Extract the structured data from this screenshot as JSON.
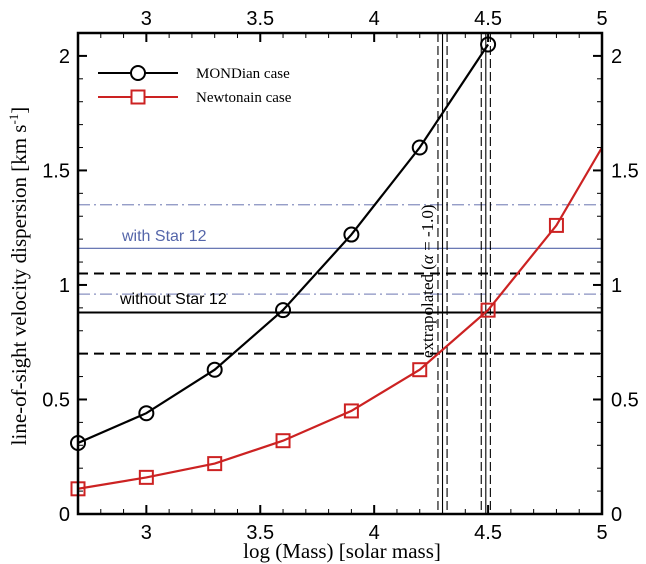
{
  "chart_data": {
    "type": "line",
    "xlabel": "log (Mass) [solar mass]",
    "ylabel_main": "line-of-sight velocity dispersion [km s",
    "ylabel_sup": "-1",
    "ylabel_close": "]",
    "xlim": [
      2.7,
      5.0
    ],
    "ylim": [
      0,
      2.1
    ],
    "x_ticks": [
      3,
      3.5,
      4,
      4.5,
      5
    ],
    "y_ticks": [
      0,
      0.5,
      1,
      1.5,
      2
    ],
    "x_tick_labels": [
      "3",
      "3.5",
      "4",
      "4.5",
      "5"
    ],
    "y_tick_labels": [
      "0",
      "0.5",
      "1",
      "1.5",
      "2"
    ],
    "series": [
      {
        "name": "MONDian case",
        "color": "#000000",
        "marker": "circle",
        "x": [
          2.7,
          3.0,
          3.3,
          3.6,
          3.9,
          4.2,
          4.5
        ],
        "y": [
          0.31,
          0.44,
          0.63,
          0.89,
          1.22,
          1.6,
          2.05
        ]
      },
      {
        "name": "Newtonain case",
        "color": "#cc2222",
        "marker": "square",
        "x": [
          2.7,
          3.0,
          3.3,
          3.6,
          3.9,
          4.2,
          4.5
        ],
        "y": [
          0.11,
          0.16,
          0.22,
          0.32,
          0.45,
          0.63,
          0.89
        ],
        "extrapolated": {
          "x": [
            4.5,
            4.8,
            5.0
          ],
          "y": [
            0.89,
            1.26,
            1.6
          ],
          "markers_x": [
            4.8
          ],
          "markers_y": [
            1.26
          ]
        }
      }
    ],
    "reference_lines": {
      "without_star12": {
        "label": "without Star 12",
        "value": 0.88,
        "lower": 0.7,
        "upper": 1.05,
        "color": "#000000"
      },
      "with_star12": {
        "label": "with Star 12",
        "value": 1.16,
        "lower": 0.96,
        "upper": 1.35,
        "color": "#5566aa"
      }
    },
    "vertical_bands": [
      {
        "center": 4.3,
        "lower": 4.28,
        "upper": 4.32
      },
      {
        "center": 4.49,
        "lower": 4.47,
        "upper": 4.51
      }
    ],
    "annotation": {
      "prefix": "extrapolated  (",
      "alpha": "α",
      "suffix": " = -1.0)"
    },
    "legend_placement": "top-left"
  }
}
